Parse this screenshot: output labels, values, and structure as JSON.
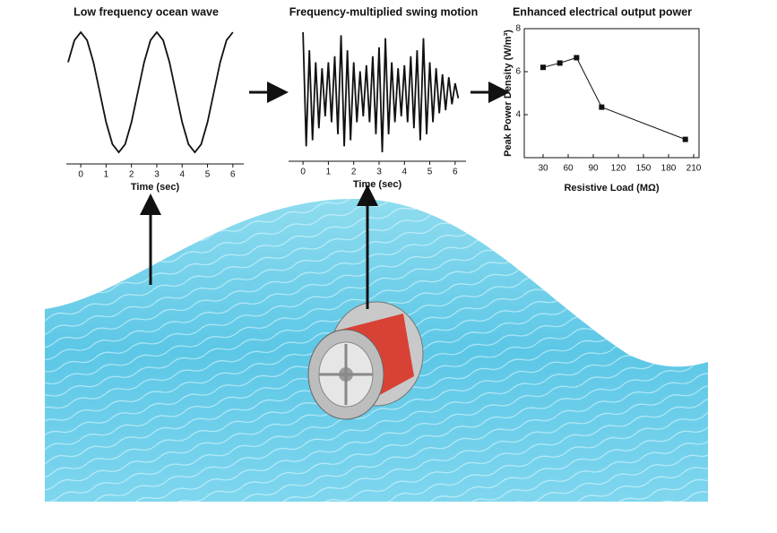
{
  "chart_data": [
    {
      "type": "line",
      "title": "Low frequency ocean wave",
      "xlabel": "Time (sec)",
      "color": "#111111",
      "x": [
        -0.5,
        -0.25,
        0,
        0.25,
        0.5,
        0.75,
        1,
        1.25,
        1.5,
        1.75,
        2,
        2.25,
        2.5,
        2.75,
        3,
        3.25,
        3.5,
        3.75,
        4,
        4.25,
        4.5,
        4.75,
        5,
        5.25,
        5.5,
        5.75,
        6
      ],
      "values": [
        0.5,
        0.866,
        1,
        0.866,
        0.5,
        0,
        -0.5,
        -0.866,
        -1,
        -0.866,
        -0.5,
        0,
        0.5,
        0.866,
        1,
        0.866,
        0.5,
        0,
        -0.5,
        -0.866,
        -1,
        -0.866,
        -0.5,
        0,
        0.5,
        0.866,
        1
      ],
      "xlim": [
        -0.57,
        6.43
      ],
      "xticks": [
        0,
        1,
        2,
        3,
        4,
        5,
        6
      ]
    },
    {
      "type": "line",
      "title": "Frequency-multiplied swing motion",
      "xlabel": "Time (sec)",
      "color": "#111111",
      "x": [
        0,
        0.125,
        0.25,
        0.375,
        0.5,
        0.625,
        0.75,
        0.875,
        1,
        1.125,
        1.25,
        1.375,
        1.5,
        1.625,
        1.75,
        1.875,
        2,
        2.125,
        2.25,
        2.375,
        2.5,
        2.625,
        2.75,
        2.875,
        3,
        3.125,
        3.25,
        3.375,
        3.5,
        3.625,
        3.75,
        3.875,
        4,
        4.125,
        4.25,
        4.375,
        4.5,
        4.625,
        4.75,
        4.875,
        5,
        5.125,
        5.25,
        5.375,
        5.5,
        5.625,
        5.75,
        5.875,
        6,
        6.125
      ],
      "values": [
        1.0,
        -0.9,
        0.7,
        -0.8,
        0.5,
        -0.6,
        0.4,
        -0.4,
        0.5,
        -0.5,
        0.6,
        -0.7,
        0.95,
        -0.9,
        0.7,
        -0.8,
        0.5,
        -0.5,
        0.35,
        -0.4,
        0.45,
        -0.5,
        0.6,
        -0.7,
        0.75,
        -1.0,
        0.9,
        -0.7,
        0.5,
        -0.5,
        0.4,
        -0.4,
        0.45,
        -0.5,
        0.6,
        -0.6,
        0.7,
        -0.8,
        0.9,
        -0.7,
        0.5,
        -0.5,
        0.4,
        -0.35,
        0.3,
        -0.3,
        0.25,
        -0.2,
        0.15,
        -0.1
      ],
      "xlim": [
        -0.57,
        6.43
      ],
      "xticks": [
        0,
        1,
        2,
        3,
        4,
        5,
        6
      ]
    },
    {
      "type": "line",
      "title": "Enhanced electrical output power",
      "xlabel": "Resistive Load (MΩ)",
      "ylabel": "Peak Power Density (W/m³)",
      "color": "#111111",
      "markers": true,
      "x": [
        30,
        50,
        70,
        100,
        200
      ],
      "values": [
        6.2,
        6.4,
        6.65,
        4.35,
        2.85
      ],
      "xlim": [
        7.5,
        216.4
      ],
      "xticks": [
        30,
        60,
        90,
        120,
        150,
        180,
        210
      ],
      "ylim": [
        2,
        8
      ],
      "yticks": [
        4,
        6,
        8
      ]
    }
  ]
}
